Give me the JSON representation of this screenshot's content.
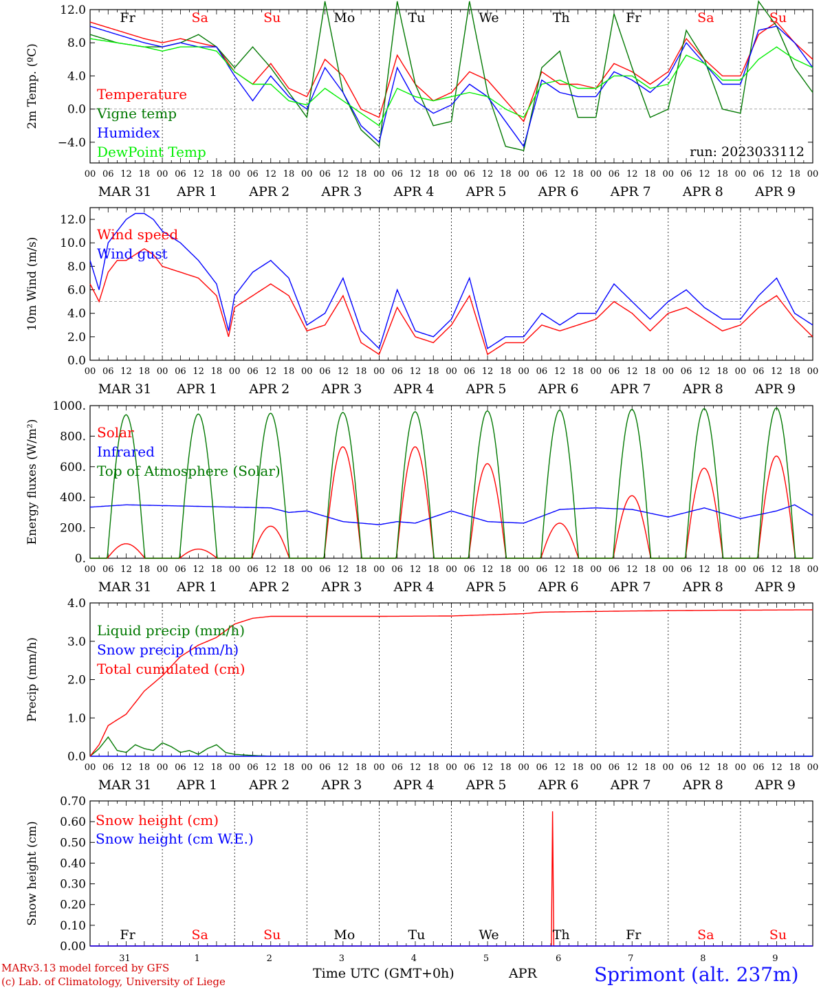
{
  "run_label": "run: 2023033112",
  "colors": {
    "red": "#ff0000",
    "green": "#007800",
    "blue": "#0000ff",
    "lightgreen": "#00ee00",
    "axis": "#000000"
  },
  "footer": {
    "credit_line1": "MARv3.13 model forced by GFS",
    "credit_line2": "(c) Lab. of Climatology, University of Liege",
    "x_title": "Time UTC (GMT+0h)",
    "month": "APR",
    "station": "Sprimont (alt. 237m)"
  },
  "time_axis": {
    "hour_labels": [
      "00",
      "06",
      "12",
      "18"
    ],
    "date_labels": [
      "MAR 31",
      "APR  1",
      "APR  2",
      "APR  3",
      "APR  4",
      "APR  5",
      "APR  6",
      "APR  7",
      "APR  8",
      "APR  9"
    ],
    "day_names": [
      "Fr",
      "Sa",
      "Su",
      "Mo",
      "Tu",
      "We",
      "Th",
      "Fr",
      "Sa",
      "Su"
    ],
    "weekend": [
      false,
      true,
      true,
      false,
      false,
      false,
      false,
      false,
      true,
      true
    ],
    "day_numbers": [
      "31",
      "1",
      "2",
      "3",
      "4",
      "5",
      "6",
      "7",
      "8",
      "9"
    ]
  },
  "chart_data": [
    {
      "id": "temp",
      "type": "line",
      "ylabel": "2m Temp. (ºC)",
      "ylim": [
        -6.5,
        12
      ],
      "yticks": [
        -4,
        0,
        4,
        8,
        12
      ],
      "ytick_labels": [
        "−4.0",
        "0.0",
        "4.0",
        "8.0",
        "12.0"
      ],
      "ref_line": 0,
      "x_unit": "hours since 2023-03-31 00 UTC",
      "series": [
        {
          "name": "Temperature",
          "color": "red",
          "x": [
            0,
            9,
            18,
            24,
            30,
            36,
            42,
            48,
            54,
            60,
            66,
            72,
            78,
            84,
            90,
            96,
            102,
            108,
            114,
            120,
            126,
            132,
            138,
            144,
            150,
            156,
            162,
            168,
            174,
            180,
            186,
            192,
            198,
            204,
            210,
            216,
            222,
            228,
            234,
            240
          ],
          "y": [
            10.5,
            9.5,
            8.5,
            8.0,
            8.5,
            8.0,
            7.5,
            4.5,
            3.0,
            5.5,
            2.5,
            1.5,
            6.0,
            4.0,
            0.0,
            -1.0,
            6.5,
            3.0,
            1.0,
            2.0,
            4.5,
            3.5,
            1.0,
            -1.5,
            4.5,
            3.0,
            3.0,
            2.5,
            5.5,
            4.5,
            3.0,
            4.5,
            8.5,
            6.0,
            4.0,
            4.0,
            9.0,
            10.5,
            8.0,
            6.0
          ]
        },
        {
          "name": "Vigne temp",
          "color": "green",
          "x": [
            0,
            9,
            18,
            24,
            30,
            36,
            42,
            48,
            54,
            60,
            66,
            72,
            78,
            84,
            90,
            96,
            102,
            108,
            114,
            120,
            126,
            132,
            138,
            144,
            150,
            156,
            162,
            168,
            174,
            180,
            186,
            192,
            198,
            204,
            210,
            216,
            222,
            228,
            234,
            240
          ],
          "y": [
            9.0,
            8.0,
            7.5,
            7.5,
            8.0,
            9.0,
            7.5,
            5.0,
            7.5,
            5.0,
            2.0,
            -1.0,
            13.0,
            2.0,
            -2.5,
            -4.5,
            13.0,
            3.0,
            -2.0,
            -1.5,
            13.0,
            2.0,
            -4.5,
            -5.0,
            5.0,
            7.0,
            -1.0,
            -1.0,
            11.5,
            5.0,
            -1.0,
            0.0,
            9.5,
            6.0,
            0.0,
            -0.5,
            13.0,
            10.0,
            5.0,
            2.0
          ]
        },
        {
          "name": "Humidex",
          "color": "blue",
          "x": [
            0,
            9,
            18,
            24,
            30,
            36,
            42,
            48,
            54,
            60,
            66,
            72,
            78,
            84,
            90,
            96,
            102,
            108,
            114,
            120,
            126,
            132,
            138,
            144,
            150,
            156,
            162,
            168,
            174,
            180,
            186,
            192,
            198,
            204,
            210,
            216,
            222,
            228,
            234,
            240
          ],
          "y": [
            10.0,
            9.0,
            8.0,
            7.5,
            8.0,
            7.5,
            7.5,
            4.0,
            1.0,
            4.0,
            1.5,
            0.0,
            5.0,
            2.0,
            -2.0,
            -4.0,
            5.0,
            1.0,
            -0.5,
            0.5,
            3.0,
            1.5,
            -1.5,
            -4.5,
            3.5,
            2.0,
            1.5,
            1.5,
            4.5,
            3.5,
            2.0,
            4.0,
            8.0,
            5.5,
            3.0,
            3.0,
            9.5,
            10.0,
            8.0,
            5.0
          ]
        },
        {
          "name": "DewPoint Temp",
          "color": "lightgreen",
          "x": [
            0,
            9,
            18,
            24,
            30,
            36,
            42,
            48,
            54,
            60,
            66,
            72,
            78,
            84,
            90,
            96,
            102,
            108,
            114,
            120,
            126,
            132,
            138,
            144,
            150,
            156,
            162,
            168,
            174,
            180,
            186,
            192,
            198,
            204,
            210,
            216,
            222,
            228,
            234,
            240
          ],
          "y": [
            8.5,
            8.0,
            7.5,
            7.0,
            7.5,
            7.5,
            7.0,
            4.5,
            3.0,
            3.0,
            1.0,
            0.5,
            2.5,
            1.0,
            -0.5,
            -2.0,
            2.5,
            1.5,
            1.0,
            1.5,
            2.0,
            1.5,
            0.0,
            -1.0,
            3.0,
            3.5,
            2.5,
            2.5,
            4.0,
            4.0,
            2.5,
            3.0,
            6.5,
            5.5,
            3.5,
            3.5,
            6.0,
            7.5,
            6.0,
            5.0
          ]
        }
      ]
    },
    {
      "id": "wind",
      "type": "line",
      "ylabel": "10m Wind (m/s)",
      "ylim": [
        0,
        13
      ],
      "yticks": [
        0,
        2,
        4,
        6,
        8,
        10,
        12
      ],
      "ytick_labels": [
        "0.0",
        "2.0",
        "4.0",
        "6.0",
        "8.0",
        "10.0",
        "12.0"
      ],
      "ref_line": 5,
      "x_unit": "hours since 2023-03-31 00 UTC",
      "series": [
        {
          "name": "Wind speed",
          "color": "red",
          "x": [
            0,
            3,
            6,
            9,
            12,
            15,
            18,
            21,
            24,
            30,
            36,
            42,
            46,
            48,
            54,
            60,
            66,
            72,
            78,
            84,
            90,
            96,
            102,
            108,
            114,
            120,
            126,
            132,
            138,
            144,
            150,
            156,
            162,
            168,
            174,
            180,
            186,
            192,
            198,
            204,
            210,
            216,
            222,
            228,
            234,
            240
          ],
          "y": [
            6.5,
            5.0,
            7.5,
            8.5,
            8.5,
            9.0,
            9.5,
            9.0,
            8.0,
            7.5,
            7.0,
            5.5,
            2.0,
            4.5,
            5.5,
            6.5,
            5.5,
            2.5,
            3.0,
            5.5,
            1.5,
            0.5,
            4.5,
            2.0,
            1.5,
            3.0,
            5.5,
            0.5,
            1.5,
            1.5,
            3.0,
            2.5,
            3.0,
            3.5,
            5.0,
            4.0,
            2.5,
            4.0,
            4.5,
            3.5,
            2.5,
            3.0,
            4.5,
            5.5,
            3.5,
            2.0
          ]
        },
        {
          "name": "Wind gust",
          "color": "blue",
          "x": [
            0,
            3,
            6,
            9,
            12,
            15,
            18,
            21,
            24,
            30,
            36,
            42,
            46,
            48,
            54,
            60,
            66,
            72,
            78,
            84,
            90,
            96,
            102,
            108,
            114,
            120,
            126,
            132,
            138,
            144,
            150,
            156,
            162,
            168,
            174,
            180,
            186,
            192,
            198,
            204,
            210,
            216,
            222,
            228,
            234,
            240
          ],
          "y": [
            8.5,
            6.0,
            10.0,
            11.0,
            12.0,
            12.5,
            12.5,
            12.0,
            11.0,
            10.0,
            8.5,
            6.5,
            2.5,
            5.5,
            7.5,
            8.5,
            7.0,
            3.0,
            4.0,
            7.0,
            2.5,
            1.0,
            6.0,
            2.5,
            2.0,
            3.5,
            7.0,
            1.0,
            2.0,
            2.0,
            4.0,
            3.0,
            4.0,
            4.0,
            6.5,
            5.0,
            3.5,
            5.0,
            6.0,
            4.5,
            3.5,
            3.5,
            5.5,
            7.0,
            4.0,
            3.0
          ]
        }
      ]
    },
    {
      "id": "energy",
      "type": "line",
      "ylabel": "Energy fluxes (W/m²)",
      "ylim": [
        0,
        1000
      ],
      "yticks": [
        0,
        200,
        400,
        600,
        800,
        1000
      ],
      "ytick_labels": [
        "0.",
        "200.",
        "400.",
        "600.",
        "800.",
        "1000."
      ],
      "x_unit": "hours since 2023-03-31 00 UTC",
      "sun": {
        "rise": 5.7,
        "set": 18.2
      },
      "series": [
        {
          "name": "Solar",
          "color": "red",
          "daily_peak": [
            95,
            60,
            210,
            730,
            730,
            620,
            230,
            410,
            590,
            670
          ]
        },
        {
          "name": "Infrared",
          "color": "blue",
          "x": [
            0,
            12,
            24,
            36,
            48,
            60,
            66,
            72,
            84,
            96,
            102,
            108,
            120,
            132,
            144,
            156,
            168,
            180,
            192,
            204,
            216,
            228,
            234,
            240
          ],
          "y": [
            335,
            350,
            345,
            340,
            335,
            330,
            300,
            310,
            240,
            220,
            240,
            230,
            310,
            240,
            230,
            320,
            330,
            320,
            270,
            330,
            260,
            310,
            350,
            280
          ]
        },
        {
          "name": "Top of Atmosphere (Solar)",
          "color": "green",
          "daily_peak": [
            940,
            945,
            950,
            955,
            960,
            965,
            970,
            975,
            980,
            985
          ]
        }
      ]
    },
    {
      "id": "precip",
      "type": "line",
      "ylabel": "Precip (mm/h)",
      "ylim": [
        0,
        4
      ],
      "yticks": [
        0,
        1,
        2,
        3,
        4
      ],
      "ytick_labels": [
        "0.0",
        "1.0",
        "2.0",
        "3.0",
        "4.0"
      ],
      "x_unit": "hours since 2023-03-31 00 UTC",
      "series": [
        {
          "name": "Liquid precip (mm/h)",
          "color": "green",
          "x": [
            0,
            3,
            6,
            9,
            12,
            15,
            18,
            21,
            24,
            27,
            30,
            33,
            36,
            39,
            42,
            45,
            48,
            54,
            60,
            240
          ],
          "y": [
            0.0,
            0.2,
            0.5,
            0.15,
            0.1,
            0.3,
            0.2,
            0.15,
            0.35,
            0.25,
            0.1,
            0.15,
            0.05,
            0.2,
            0.3,
            0.1,
            0.05,
            0.02,
            0.0,
            0.0
          ]
        },
        {
          "name": "Snow precip (mm/h)",
          "color": "blue",
          "x": [
            0,
            240
          ],
          "y": [
            0.0,
            0.0
          ]
        },
        {
          "name": "Total cumulated (cm)",
          "color": "red",
          "x": [
            0,
            3,
            6,
            9,
            12,
            15,
            18,
            21,
            24,
            30,
            36,
            42,
            48,
            54,
            60,
            72,
            96,
            120,
            144,
            150,
            180,
            210,
            240
          ],
          "y": [
            0.0,
            0.3,
            0.8,
            0.95,
            1.1,
            1.4,
            1.7,
            1.9,
            2.1,
            2.6,
            2.9,
            3.1,
            3.45,
            3.6,
            3.65,
            3.65,
            3.65,
            3.66,
            3.72,
            3.76,
            3.79,
            3.81,
            3.82
          ]
        }
      ]
    },
    {
      "id": "snow",
      "type": "line",
      "ylabel": "Snow height (cm)",
      "ylim": [
        0,
        0.7
      ],
      "yticks": [
        0,
        0.1,
        0.2,
        0.3,
        0.4,
        0.5,
        0.6,
        0.7
      ],
      "ytick_labels": [
        "0.00",
        "0.10",
        "0.20",
        "0.30",
        "0.40",
        "0.50",
        "0.60",
        "0.70"
      ],
      "x_unit": "hours since 2023-03-31 00 UTC",
      "series": [
        {
          "name": "Snow height (cm)",
          "color": "red",
          "x": [
            0,
            153.2,
            153.6,
            154.0,
            154.4,
            240
          ],
          "y": [
            0.0,
            0.0,
            0.65,
            0.0,
            0.0,
            0.0
          ]
        },
        {
          "name": "Snow height (cm W.E.)",
          "color": "blue",
          "x": [
            0,
            240
          ],
          "y": [
            0.0,
            0.0
          ]
        }
      ]
    }
  ]
}
